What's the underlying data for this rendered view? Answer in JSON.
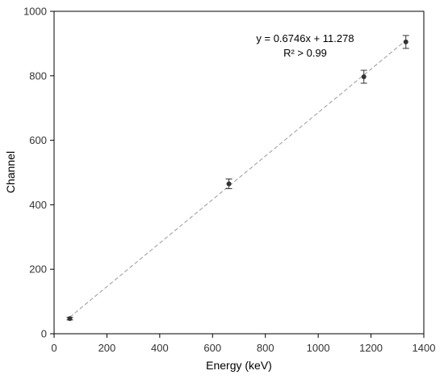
{
  "chart_data": {
    "type": "scatter",
    "title": "",
    "xlabel": "Energy (keV)",
    "ylabel": "Channel",
    "xlim": [
      0,
      1400
    ],
    "ylim": [
      0,
      1000
    ],
    "xticks": [
      "0",
      "200",
      "400",
      "600",
      "800",
      "1000",
      "1200",
      "1400"
    ],
    "yticks": [
      "0",
      "200",
      "400",
      "600",
      "800",
      "1000"
    ],
    "grid": false,
    "legend": "none",
    "series": [
      {
        "x": [
          59.5,
          662,
          1173,
          1332
        ],
        "y": [
          47,
          465,
          797,
          905
        ],
        "error": [
          4,
          15,
          20,
          20
        ],
        "color": "#333333"
      }
    ],
    "trendline": {
      "type": "linear",
      "slope": 0.6746,
      "intercept": 11.278,
      "x_range": [
        59.5,
        1332
      ],
      "color": "#999999",
      "style": "dashed"
    },
    "annotations": {
      "equation": "y = 0.6746x + 11.278",
      "r_squared": "R² > 0.99"
    }
  }
}
